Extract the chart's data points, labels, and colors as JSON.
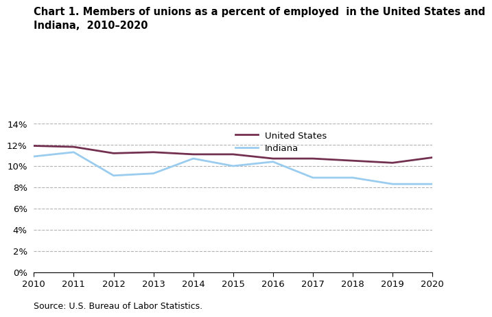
{
  "title_line1": "Chart 1. Members of unions as a percent of employed  in the United States and",
  "title_line2": "Indiana,  2010–2020",
  "years": [
    2010,
    2011,
    2012,
    2013,
    2014,
    2015,
    2016,
    2017,
    2018,
    2019,
    2020
  ],
  "us_values": [
    11.9,
    11.8,
    11.2,
    11.3,
    11.1,
    11.1,
    10.7,
    10.7,
    10.5,
    10.3,
    10.8
  ],
  "indiana_values": [
    10.9,
    11.3,
    9.1,
    9.3,
    10.7,
    10.0,
    10.4,
    8.9,
    8.9,
    8.3,
    8.3
  ],
  "us_color": "#722F4F",
  "indiana_color": "#99CCEE",
  "us_label": "United States",
  "indiana_label": "Indiana",
  "ylim": [
    0,
    14
  ],
  "yticks": [
    0,
    2,
    4,
    6,
    8,
    10,
    12,
    14
  ],
  "source_text": "Source: U.S. Bureau of Labor Statistics.",
  "line_width": 2.0,
  "title_fontsize": 10.5,
  "tick_fontsize": 9.5,
  "legend_fontsize": 9.5
}
